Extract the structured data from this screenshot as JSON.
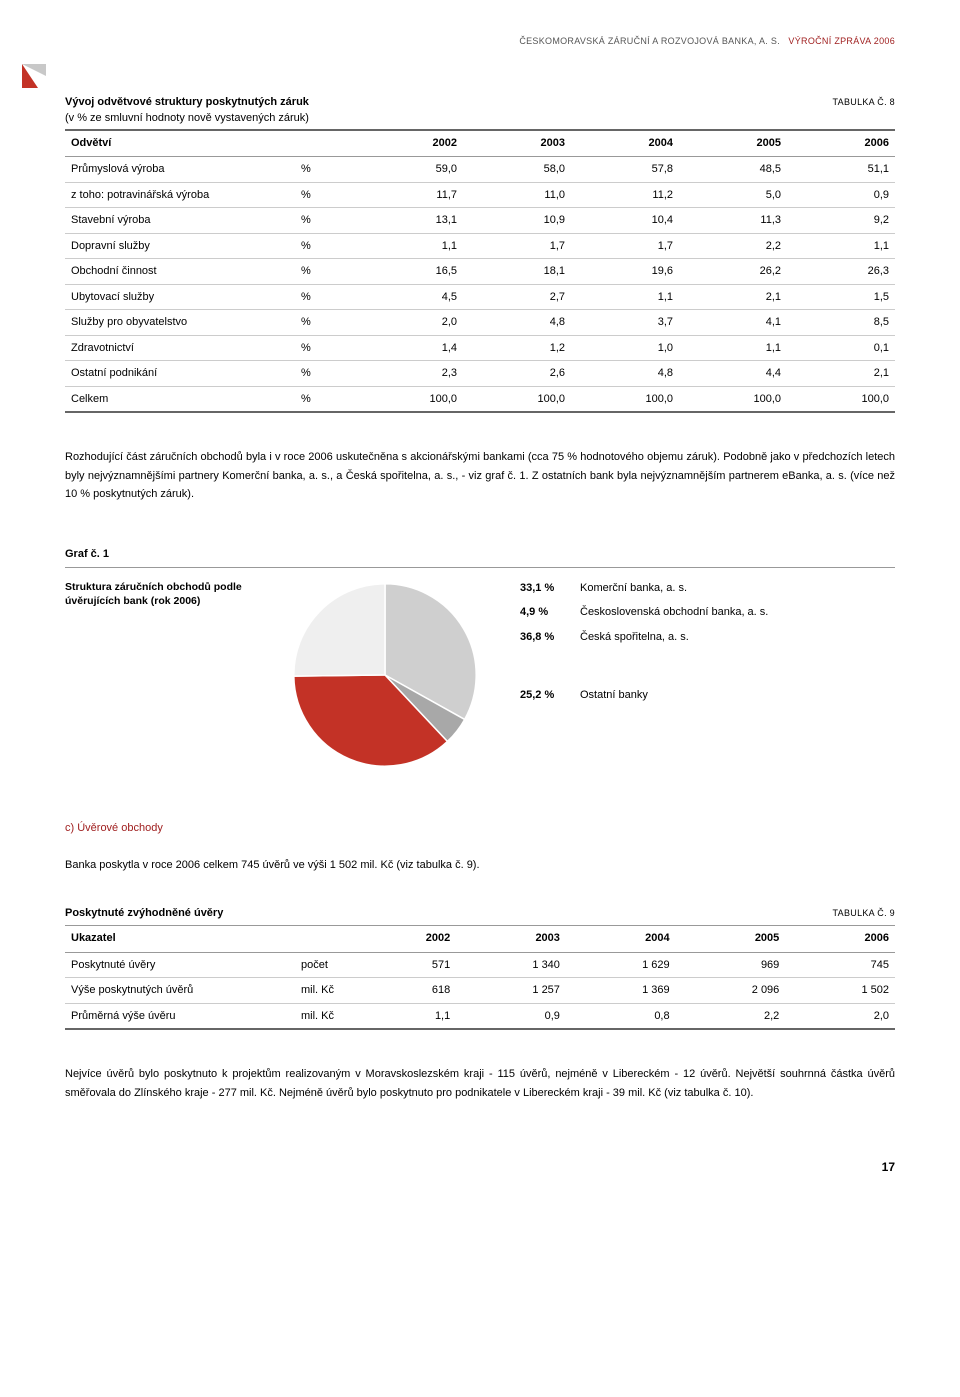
{
  "header": {
    "company": "ČESKOMORAVSKÁ ZÁRUČNÍ A ROZVOJOVÁ BANKA, A. S.",
    "report": "VÝROČNÍ ZPRÁVA 2006"
  },
  "table8": {
    "title": "Vývoj odvětvové struktury poskytnutých záruk",
    "subtitle": "(v % ze smluvní hodnoty nově vystavených záruk)",
    "ref": "TABULKA Č. 8",
    "head_sector": "Odvětví",
    "years": [
      "2002",
      "2003",
      "2004",
      "2005",
      "2006"
    ],
    "rows": [
      {
        "label": "Průmyslová výroba",
        "u": "%",
        "v": [
          "59,0",
          "58,0",
          "57,8",
          "48,5",
          "51,1"
        ]
      },
      {
        "label": "z toho: potravinářská výroba",
        "u": "%",
        "v": [
          "11,7",
          "11,0",
          "11,2",
          "5,0",
          "0,9"
        ]
      },
      {
        "label": "Stavební výroba",
        "u": "%",
        "v": [
          "13,1",
          "10,9",
          "10,4",
          "11,3",
          "9,2"
        ]
      },
      {
        "label": "Dopravní služby",
        "u": "%",
        "v": [
          "1,1",
          "1,7",
          "1,7",
          "2,2",
          "1,1"
        ]
      },
      {
        "label": "Obchodní činnost",
        "u": "%",
        "v": [
          "16,5",
          "18,1",
          "19,6",
          "26,2",
          "26,3"
        ]
      },
      {
        "label": "Ubytovací služby",
        "u": "%",
        "v": [
          "4,5",
          "2,7",
          "1,1",
          "2,1",
          "1,5"
        ]
      },
      {
        "label": "Služby pro obyvatelstvo",
        "u": "%",
        "v": [
          "2,0",
          "4,8",
          "3,7",
          "4,1",
          "8,5"
        ]
      },
      {
        "label": "Zdravotnictví",
        "u": "%",
        "v": [
          "1,4",
          "1,2",
          "1,0",
          "1,1",
          "0,1"
        ]
      },
      {
        "label": "Ostatní podnikání",
        "u": "%",
        "v": [
          "2,3",
          "2,6",
          "4,8",
          "4,4",
          "2,1"
        ]
      },
      {
        "label": "Celkem",
        "u": "%",
        "v": [
          "100,0",
          "100,0",
          "100,0",
          "100,0",
          "100,0"
        ]
      }
    ]
  },
  "para1": "Rozhodující část záručních obchodů byla i v roce 2006 uskutečněna s akcionářskými bankami (cca 75 % hodnotového objemu záruk). Podobně jako v předchozích letech byly nejvýznamnějšími partnery Komerční banka, a. s., a Česká spořitelna, a. s., - viz graf č. 1. Z ostatních bank byla nejvýznamnějším partnerem eBanka, a. s. (více než 10 % poskytnutých záruk).",
  "graf": {
    "label": "Graf č. 1",
    "caption": "Struktura záručních obchodů podle úvěrujících bank (rok 2006)",
    "type": "pie",
    "slices": [
      {
        "pct": "33,1 %",
        "value": 33.1,
        "label": "Komerční banka, a. s.",
        "color": "#cfcfcf"
      },
      {
        "pct": "4,9 %",
        "value": 4.9,
        "label": "Československá obchodní banka, a. s.",
        "color": "#a8a8a8"
      },
      {
        "pct": "36,8 %",
        "value": 36.8,
        "label": "Česká spořitelna, a. s.",
        "color": "#c33226"
      },
      {
        "pct": "25,2 %",
        "value": 25.2,
        "label": "Ostatní banky",
        "color": "#efefef"
      }
    ],
    "stroke": "#ffffff",
    "background": "#ffffff"
  },
  "section_c": "c)  Úvěrové obchody",
  "para2": "Banka poskytla v roce 2006 celkem 745 úvěrů ve výši 1 502 mil. Kč (viz tabulka č. 9).",
  "table9": {
    "title": "Poskytnuté zvýhodněné úvěry",
    "ref": "TABULKA Č. 9",
    "head_indicator": "Ukazatel",
    "years": [
      "2002",
      "2003",
      "2004",
      "2005",
      "2006"
    ],
    "rows": [
      {
        "label": "Poskytnuté úvěry",
        "u": "počet",
        "v": [
          "571",
          "1 340",
          "1 629",
          "969",
          "745"
        ]
      },
      {
        "label": "Výše poskytnutých úvěrů",
        "u": "mil. Kč",
        "v": [
          "618",
          "1 257",
          "1 369",
          "2 096",
          "1 502"
        ]
      },
      {
        "label": "Průměrná výše úvěru",
        "u": "mil. Kč",
        "v": [
          "1,1",
          "0,9",
          "0,8",
          "2,2",
          "2,0"
        ]
      }
    ]
  },
  "para3": "Nejvíce úvěrů bylo poskytnuto k projektům realizovaným v Moravskoslezském kraji - 115 úvěrů, nejméně v Libereckém - 12 úvěrů. Největší souhrnná částka úvěrů směřovala do Zlínského kraje - 277 mil. Kč. Nejméně úvěrů bylo poskytnuto pro podnikatele v Libereckém kraji - 39 mil. Kč (viz tabulka č. 10).",
  "page_num": "17"
}
